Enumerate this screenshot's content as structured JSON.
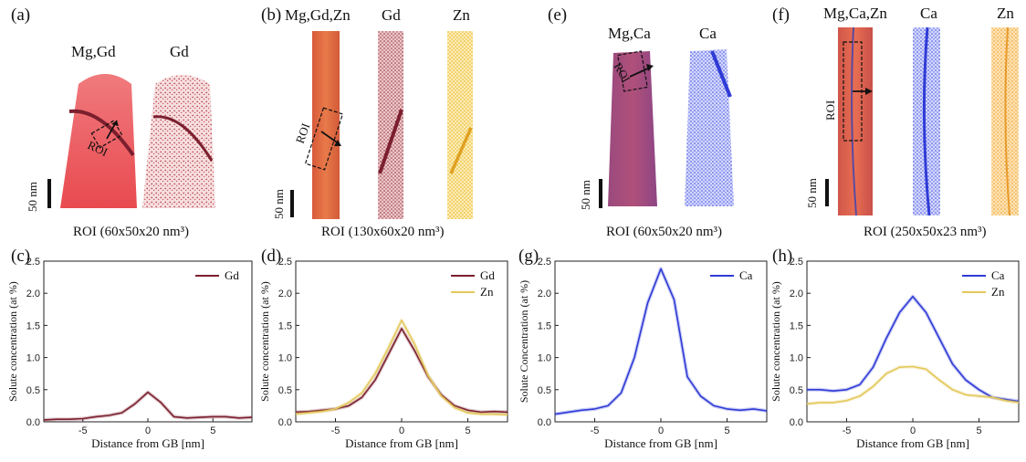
{
  "panels_top": [
    {
      "letter": "(a)",
      "elements": [
        "Mg,Gd",
        "Gd"
      ],
      "roi_text": "ROI (60x50x20 nm³)",
      "scale_text": "50 nm",
      "roi_label": "ROI"
    },
    {
      "letter": "(b)",
      "elements": [
        "Mg,Gd,Zn",
        "Gd",
        "Zn"
      ],
      "roi_text": "ROI (130x60x20 nm³)",
      "scale_text": "50 nm",
      "roi_label": "ROI"
    },
    {
      "letter": "(e)",
      "elements": [
        "Mg,Ca",
        "Ca"
      ],
      "roi_text": "ROI (60x50x20 nm³)",
      "scale_text": "50 nm",
      "roi_label": "ROI"
    },
    {
      "letter": "(f)",
      "elements": [
        "Mg,Ca,Zn",
        "Ca",
        "Zn"
      ],
      "roi_text": "ROI (250x50x23 nm³)",
      "scale_text": "50 nm",
      "roi_label": "ROI"
    }
  ],
  "colors": {
    "gd": "#7b1f2e",
    "zn": "#e3c85a",
    "ca": "#2f3bd6",
    "mg_red": "#e8595c",
    "mg_orange": "#dd6a3c",
    "mg_purple": "#8a4a86"
  },
  "chart_data": [
    {
      "type": "line",
      "panel": "(c)",
      "xlabel": "Distance from GB [nm]",
      "ylabel": "Solute concentration (at %)",
      "xlim": [
        -8,
        8
      ],
      "ylim": [
        0,
        2.5
      ],
      "xticks": [
        -5,
        0,
        5
      ],
      "yticks": [
        0.0,
        0.5,
        1.0,
        1.5,
        2.0,
        2.5
      ],
      "legend": "top-right",
      "x": [
        -8,
        -7,
        -6,
        -5,
        -4,
        -3,
        -2,
        -1,
        0,
        1,
        2,
        3,
        4,
        5,
        6,
        7,
        8
      ],
      "series": [
        {
          "name": "Gd",
          "color": "#7b1f2e",
          "values": [
            0.03,
            0.04,
            0.04,
            0.05,
            0.08,
            0.1,
            0.14,
            0.28,
            0.46,
            0.3,
            0.08,
            0.06,
            0.07,
            0.08,
            0.08,
            0.06,
            0.07
          ]
        }
      ]
    },
    {
      "type": "line",
      "panel": "(d)",
      "xlabel": "Distance from GB [nm]",
      "ylabel": "Solute concentration (at %)",
      "xlim": [
        -8,
        8
      ],
      "ylim": [
        0,
        2.5
      ],
      "xticks": [
        -5,
        0,
        5
      ],
      "yticks": [
        0.0,
        0.5,
        1.0,
        1.5,
        2.0,
        2.5
      ],
      "legend": "top-right",
      "x": [
        -8,
        -7,
        -6,
        -5,
        -4,
        -3,
        -2,
        -1,
        0,
        1,
        2,
        3,
        4,
        5,
        6,
        7,
        8
      ],
      "series": [
        {
          "name": "Gd",
          "color": "#7b1f2e",
          "values": [
            0.15,
            0.16,
            0.18,
            0.2,
            0.25,
            0.38,
            0.65,
            1.05,
            1.45,
            1.1,
            0.7,
            0.42,
            0.25,
            0.18,
            0.15,
            0.16,
            0.15
          ]
        },
        {
          "name": "Zn",
          "color": "#e3c85a",
          "values": [
            0.12,
            0.14,
            0.16,
            0.2,
            0.3,
            0.45,
            0.75,
            1.15,
            1.58,
            1.2,
            0.72,
            0.4,
            0.22,
            0.14,
            0.12,
            0.12,
            0.11
          ]
        }
      ]
    },
    {
      "type": "line",
      "panel": "(g)",
      "xlabel": "Distance from GB [nm]",
      "ylabel": "Solute Concentration (at %)",
      "xlim": [
        -8,
        8
      ],
      "ylim": [
        0,
        2.5
      ],
      "xticks": [
        -5,
        0,
        5
      ],
      "yticks": [
        0.0,
        0.5,
        1.0,
        1.5,
        2.0,
        2.5
      ],
      "legend": "top-right",
      "x": [
        -8,
        -7,
        -6,
        -5,
        -4,
        -3,
        -2,
        -1,
        0,
        1,
        2,
        3,
        4,
        5,
        6,
        7,
        8
      ],
      "series": [
        {
          "name": "Ca",
          "color": "#2f3bd6",
          "values": [
            0.12,
            0.15,
            0.18,
            0.2,
            0.25,
            0.45,
            1.0,
            1.85,
            2.38,
            1.9,
            0.7,
            0.4,
            0.25,
            0.2,
            0.18,
            0.2,
            0.17
          ]
        }
      ]
    },
    {
      "type": "line",
      "panel": "(h)",
      "xlabel": "Distance from GB [nm]",
      "ylabel": "Solute concentration (at %)",
      "xlim": [
        -8,
        8
      ],
      "ylim": [
        0,
        2.5
      ],
      "xticks": [
        -5,
        0,
        5
      ],
      "yticks": [
        0.0,
        0.5,
        1.0,
        1.5,
        2.0,
        2.5
      ],
      "legend": "top-right",
      "x": [
        -8,
        -7,
        -6,
        -5,
        -4,
        -3,
        -2,
        -1,
        0,
        1,
        2,
        3,
        4,
        5,
        6,
        7,
        8
      ],
      "series": [
        {
          "name": "Ca",
          "color": "#2f3bd6",
          "values": [
            0.5,
            0.5,
            0.48,
            0.5,
            0.58,
            0.85,
            1.3,
            1.7,
            1.95,
            1.7,
            1.3,
            0.9,
            0.65,
            0.5,
            0.38,
            0.35,
            0.32
          ]
        },
        {
          "name": "Zn",
          "color": "#e3c85a",
          "values": [
            0.28,
            0.3,
            0.3,
            0.33,
            0.4,
            0.55,
            0.75,
            0.85,
            0.86,
            0.82,
            0.65,
            0.5,
            0.42,
            0.4,
            0.38,
            0.33,
            0.3
          ]
        }
      ]
    }
  ]
}
